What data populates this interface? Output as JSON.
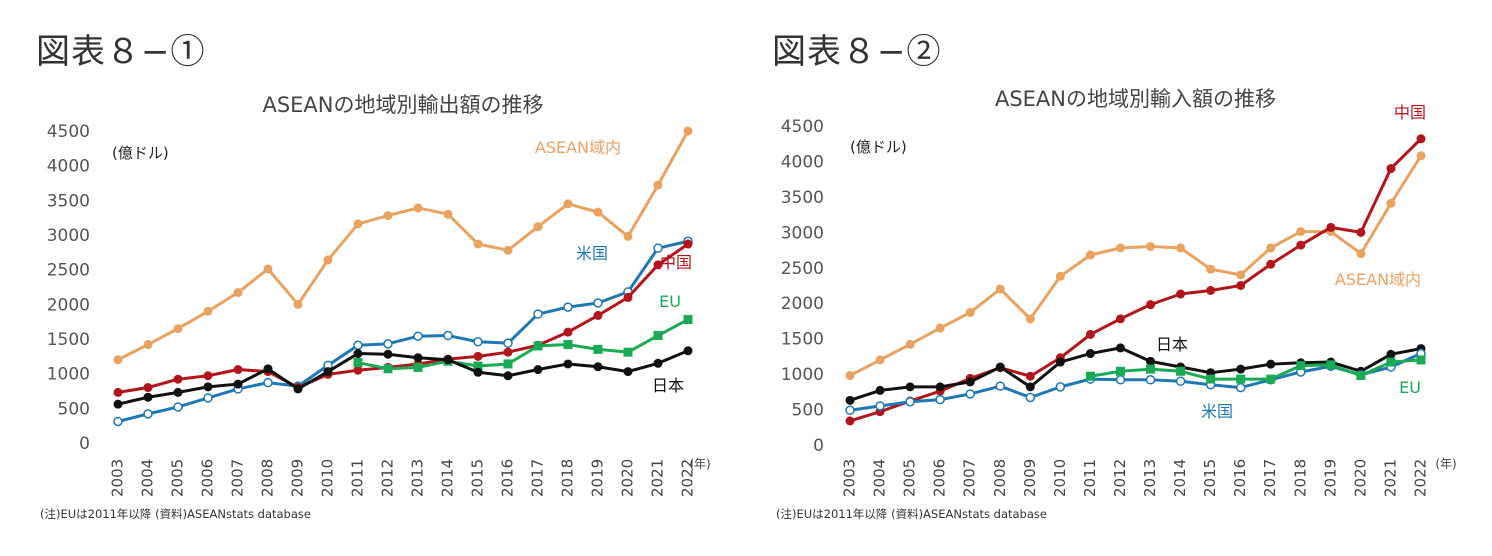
{
  "figures": [
    {
      "label": "図表８−①",
      "note": "(注)EUは2011年以降 (資料)ASEANstats database"
    },
    {
      "label": "図表８−②",
      "note": "(注)EUは2011年以降 (資料)ASEANstats database"
    }
  ],
  "colors": {
    "asean": "#E9A25F",
    "us": "#1F77B4",
    "china": "#B2151C",
    "eu": "#1AAA55",
    "japan": "#111111"
  },
  "chart_data": [
    {
      "type": "line",
      "title": "ASEANの地域別輸出額の推移",
      "ylabel": "(億ドル)",
      "xlabel": "(年)",
      "ylim": [
        0,
        4500
      ],
      "yticks": [
        "0",
        "500",
        "1000",
        "1500",
        "2000",
        "2500",
        "3000",
        "3500",
        "4000",
        "4500"
      ],
      "categories": [
        "2003",
        "2004",
        "2005",
        "2006",
        "2007",
        "2008",
        "2009",
        "2010",
        "2011",
        "2012",
        "2013",
        "2014",
        "2015",
        "2016",
        "2017",
        "2018",
        "2019",
        "2020",
        "2021",
        "2022"
      ],
      "grid": false,
      "series": [
        {
          "name": "ASEAN域内",
          "color_key": "asean",
          "marker": "circle-filled",
          "values": [
            1200,
            1420,
            1650,
            1900,
            2170,
            2510,
            2000,
            2640,
            3160,
            3280,
            3390,
            3300,
            2870,
            2780,
            3120,
            3450,
            3330,
            2980,
            3720,
            4500
          ]
        },
        {
          "name": "米国",
          "color_key": "us",
          "marker": "circle-open",
          "values": [
            310,
            420,
            520,
            650,
            780,
            870,
            820,
            1120,
            1410,
            1430,
            1540,
            1550,
            1460,
            1440,
            1860,
            1960,
            2020,
            2180,
            2810,
            2910
          ]
        },
        {
          "name": "中国",
          "color_key": "china",
          "marker": "circle-filled",
          "values": [
            730,
            800,
            920,
            970,
            1060,
            1030,
            800,
            990,
            1050,
            1090,
            1140,
            1210,
            1250,
            1310,
            1410,
            1600,
            1840,
            2100,
            2570,
            2870
          ]
        },
        {
          "name": "EU",
          "color_key": "eu",
          "marker": "square",
          "values": [
            null,
            null,
            null,
            null,
            null,
            null,
            null,
            null,
            1160,
            1070,
            1090,
            1180,
            1110,
            1140,
            1400,
            1420,
            1350,
            1310,
            1550,
            1780
          ]
        },
        {
          "name": "日本",
          "color_key": "japan",
          "marker": "circle-filled",
          "values": [
            560,
            660,
            730,
            810,
            850,
            1070,
            780,
            1030,
            1290,
            1280,
            1230,
            1200,
            1020,
            970,
            1060,
            1140,
            1100,
            1030,
            1150,
            1330
          ]
        }
      ],
      "labels": [
        {
          "text": "ASEAN域内",
          "series": 0
        },
        {
          "text": "米国",
          "series": 1
        },
        {
          "text": "中国",
          "series": 2
        },
        {
          "text": "EU",
          "series": 3
        },
        {
          "text": "日本",
          "series": 4
        }
      ]
    },
    {
      "type": "line",
      "title": "ASEANの地域別輸入額の推移",
      "ylabel": "(億ドル)",
      "xlabel": "(年)",
      "ylim": [
        0,
        4500
      ],
      "yticks": [
        "0",
        "500",
        "1000",
        "1500",
        "2000",
        "2500",
        "3000",
        "3500",
        "4000",
        "4500"
      ],
      "categories": [
        "2003",
        "2004",
        "2005",
        "2006",
        "2007",
        "2008",
        "2009",
        "2010",
        "2011",
        "2012",
        "2013",
        "2014",
        "2015",
        "2016",
        "2017",
        "2018",
        "2019",
        "2020",
        "2021",
        "2022"
      ],
      "grid": false,
      "series": [
        {
          "name": "ASEAN域内",
          "color_key": "asean",
          "marker": "circle-filled",
          "values": [
            980,
            1200,
            1420,
            1650,
            1870,
            2200,
            1780,
            2380,
            2680,
            2780,
            2800,
            2780,
            2480,
            2400,
            2780,
            3010,
            3010,
            2700,
            3410,
            4080
          ]
        },
        {
          "name": "中国",
          "color_key": "china",
          "marker": "circle-filled",
          "values": [
            340,
            470,
            620,
            760,
            940,
            1090,
            970,
            1230,
            1560,
            1780,
            1980,
            2130,
            2180,
            2250,
            2550,
            2820,
            3070,
            3000,
            3900,
            4320
          ]
        },
        {
          "name": "日本",
          "color_key": "japan",
          "marker": "circle-filled",
          "values": [
            630,
            770,
            820,
            820,
            890,
            1100,
            820,
            1170,
            1290,
            1370,
            1180,
            1100,
            1020,
            1070,
            1140,
            1160,
            1170,
            1040,
            1280,
            1360
          ]
        },
        {
          "name": "米国",
          "color_key": "us",
          "marker": "circle-open",
          "values": [
            490,
            550,
            610,
            640,
            720,
            830,
            670,
            820,
            930,
            920,
            920,
            900,
            850,
            810,
            920,
            1030,
            1110,
            990,
            1100,
            1290
          ]
        },
        {
          "name": "EU",
          "color_key": "eu",
          "marker": "square",
          "values": [
            null,
            null,
            null,
            null,
            null,
            null,
            null,
            null,
            970,
            1040,
            1070,
            1040,
            930,
            930,
            930,
            1120,
            1130,
            980,
            1170,
            1200
          ]
        }
      ],
      "labels": [
        {
          "text": "中国",
          "series": 1
        },
        {
          "text": "ASEAN域内",
          "series": 0
        },
        {
          "text": "日本",
          "series": 2
        },
        {
          "text": "米国",
          "series": 3
        },
        {
          "text": "EU",
          "series": 4
        }
      ]
    }
  ]
}
